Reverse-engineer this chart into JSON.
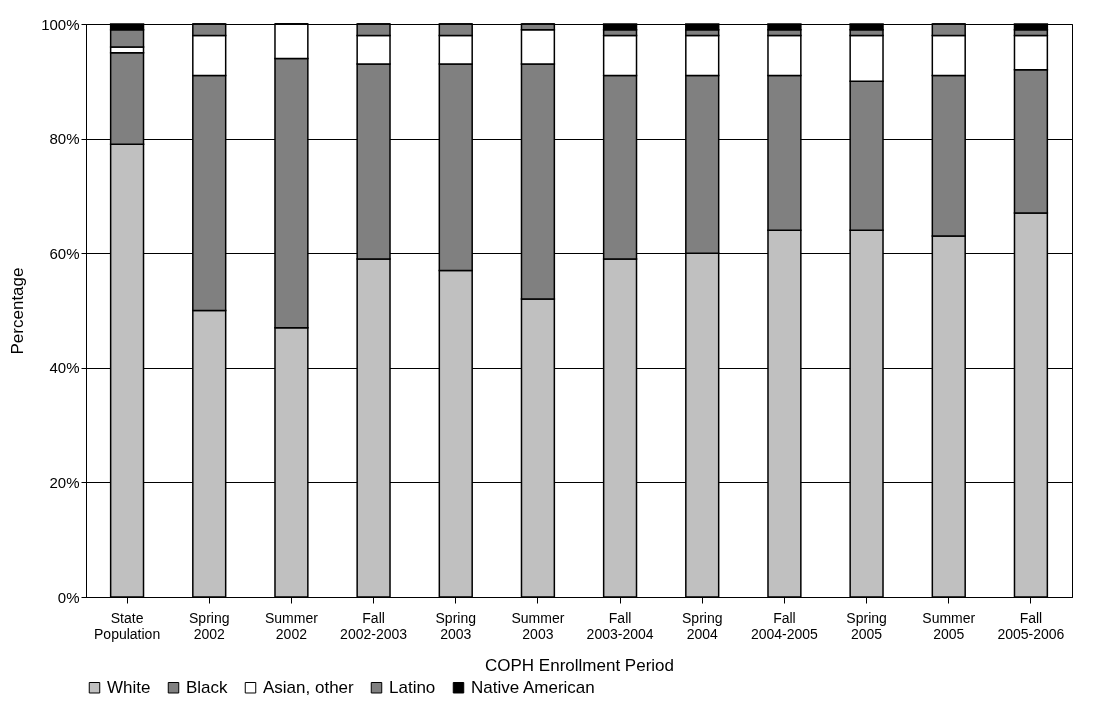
{
  "chart_data": {
    "type": "bar",
    "stacked": true,
    "xlabel": "COPH Enrollment Period",
    "ylabel": "Percentage",
    "categories": [
      "State Population",
      "Spring 2002",
      "Summer 2002",
      "Fall 2002-2003",
      "Spring 2003",
      "Summer 2003",
      "Fall 2003-2004",
      "Spring 2004",
      "Fall 2004-2005",
      "Spring 2005",
      "Summer 2005",
      "Fall 2005-2006"
    ],
    "series": [
      {
        "name": "White",
        "color": "#c0c0c0",
        "values": [
          79,
          50,
          47,
          59,
          57,
          52,
          59,
          60,
          64,
          64,
          63,
          67
        ]
      },
      {
        "name": "Black",
        "color": "#808080",
        "values": [
          16,
          41,
          47,
          34,
          36,
          41,
          32,
          31,
          27,
          26,
          28,
          25
        ]
      },
      {
        "name": "Asian, other",
        "color": "#ffffff",
        "values": [
          1,
          7,
          6,
          5,
          5,
          6,
          7,
          7,
          7,
          8,
          7,
          6
        ]
      },
      {
        "name": "Latino",
        "color": "#808080",
        "values": [
          3,
          2,
          0,
          2,
          2,
          1,
          1,
          1,
          1,
          1,
          2,
          1
        ]
      },
      {
        "name": "Native American",
        "color": "#000000",
        "values": [
          1,
          0,
          0,
          0,
          0,
          0,
          1,
          1,
          1,
          1,
          0,
          1
        ]
      }
    ],
    "ylim": [
      0,
      100
    ],
    "yticks": [
      {
        "value": 0,
        "label": "0%"
      },
      {
        "value": 20,
        "label": "20%"
      },
      {
        "value": 40,
        "label": "40%"
      },
      {
        "value": 60,
        "label": "60%"
      },
      {
        "value": 80,
        "label": "80%"
      },
      {
        "value": 100,
        "label": "100%"
      }
    ],
    "grid": "y",
    "legend": "bottom"
  }
}
